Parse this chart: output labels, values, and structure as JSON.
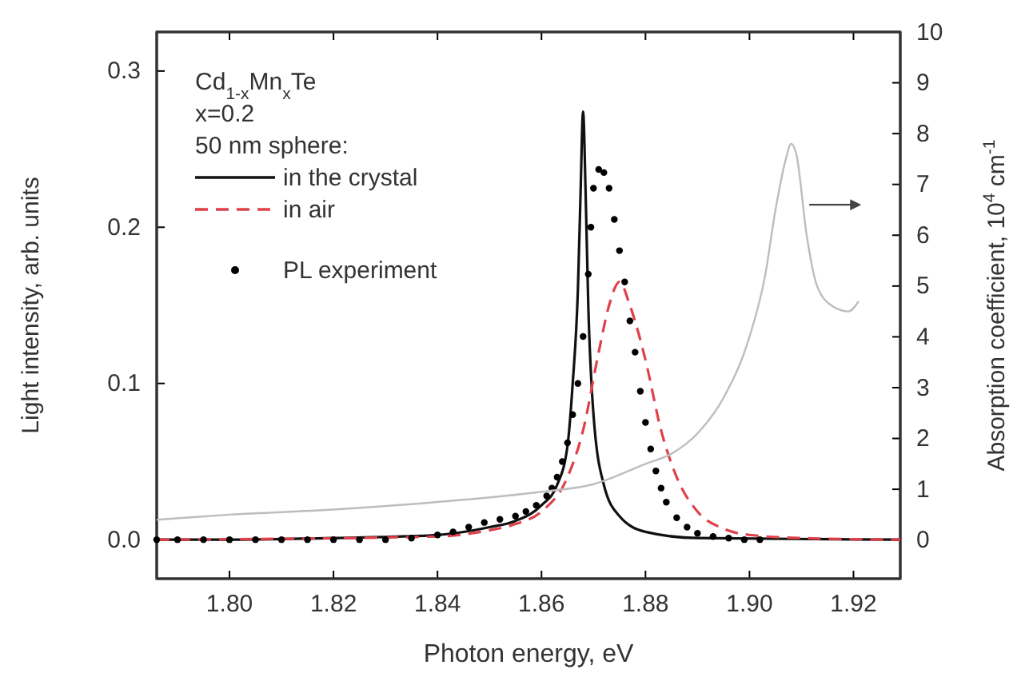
{
  "chart_data": {
    "type": "line",
    "xlabel": "Photon energy, eV",
    "ylabel": "Light intensity, arb. units",
    "y2label": "Absorption coefficient, 10$^{4}$ cm$^{-1}$",
    "annotations": [
      "Cd$_{1-x}$Mn$_{x}$Te",
      "x=0.2",
      "50 nm sphere:"
    ],
    "xlim": [
      1.786,
      1.929
    ],
    "xticks": [
      {
        "value": 1.8,
        "label": "1.80"
      },
      {
        "value": 1.82,
        "label": "1.82"
      },
      {
        "value": 1.84,
        "label": "1.84"
      },
      {
        "value": 1.86,
        "label": "1.86"
      },
      {
        "value": 1.88,
        "label": "1.88"
      },
      {
        "value": 1.9,
        "label": "1.90"
      },
      {
        "value": 1.92,
        "label": "1.92"
      }
    ],
    "ylim": [
      -0.025,
      0.325
    ],
    "yticks": [
      {
        "value": 0,
        "label": "0.0"
      },
      0.1,
      0.2,
      0.3
    ],
    "y2lim": [
      -0.76,
      10
    ],
    "y2ticks": [
      0,
      1,
      2,
      3,
      4,
      5,
      6,
      7,
      8,
      9,
      10
    ],
    "grid": false,
    "legend": "top left",
    "series": [
      {
        "name": "in the crystal",
        "color": "#111111",
        "line_style": "solid",
        "x": [
          1.786,
          1.8,
          1.82,
          1.84,
          1.85,
          1.855,
          1.86,
          1.863,
          1.865,
          1.866,
          1.867,
          1.8675,
          1.868,
          1.8685,
          1.869,
          1.87,
          1.872,
          1.875,
          1.88,
          1.89,
          1.929
        ],
        "values": [
          0,
          0,
          0.001,
          0.003,
          0.008,
          0.012,
          0.022,
          0.035,
          0.06,
          0.1,
          0.16,
          0.22,
          0.274,
          0.22,
          0.15,
          0.08,
          0.035,
          0.015,
          0.005,
          0.001,
          0
        ]
      },
      {
        "name": "in air",
        "color": "#e0404a",
        "line_style": "dashed",
        "x": [
          1.786,
          1.84,
          1.85,
          1.855,
          1.86,
          1.865,
          1.868,
          1.871,
          1.873,
          1.875,
          1.877,
          1.88,
          1.883,
          1.886,
          1.89,
          1.895,
          1.9,
          1.91,
          1.929
        ],
        "values": [
          0,
          0.002,
          0.006,
          0.01,
          0.018,
          0.04,
          0.07,
          0.12,
          0.15,
          0.165,
          0.15,
          0.115,
          0.07,
          0.04,
          0.018,
          0.007,
          0.003,
          0.001,
          0
        ]
      },
      {
        "name": "PL experiment",
        "type": "scatter",
        "marker": "circle",
        "color": "#000000",
        "x": [
          1.786,
          1.79,
          1.795,
          1.8,
          1.805,
          1.81,
          1.815,
          1.82,
          1.825,
          1.83,
          1.835,
          1.84,
          1.843,
          1.846,
          1.849,
          1.852,
          1.855,
          1.857,
          1.859,
          1.861,
          1.862,
          1.863,
          1.864,
          1.865,
          1.866,
          1.867,
          1.868,
          1.869,
          1.8695,
          1.87,
          1.871,
          1.872,
          1.873,
          1.874,
          1.875,
          1.876,
          1.877,
          1.878,
          1.879,
          1.88,
          1.881,
          1.882,
          1.883,
          1.884,
          1.886,
          1.888,
          1.89,
          1.893,
          1.896,
          1.899,
          1.902
        ],
        "values": [
          0,
          0,
          0,
          0,
          0,
          0,
          0,
          0,
          0,
          0,
          0.001,
          0.003,
          0.005,
          0.008,
          0.011,
          0.013,
          0.015,
          0.018,
          0.022,
          0.028,
          0.033,
          0.04,
          0.05,
          0.062,
          0.08,
          0.1,
          0.13,
          0.17,
          0.2,
          0.225,
          0.237,
          0.235,
          0.225,
          0.205,
          0.185,
          0.165,
          0.14,
          0.12,
          0.095,
          0.075,
          0.058,
          0.044,
          0.033,
          0.024,
          0.014,
          0.008,
          0.004,
          0.002,
          0.001,
          0,
          0
        ]
      },
      {
        "axis": "y2",
        "color": "#bdbdbd",
        "line_style": "solid",
        "x": [
          1.786,
          1.8,
          1.82,
          1.84,
          1.86,
          1.87,
          1.88,
          1.885,
          1.89,
          1.895,
          1.9,
          1.903,
          1.905,
          1.907,
          1.908,
          1.909,
          1.911,
          1.913,
          1.916,
          1.919,
          1.921
        ],
        "values": [
          0.4,
          0.5,
          0.6,
          0.75,
          0.95,
          1.1,
          1.5,
          1.7,
          2.1,
          2.8,
          4.0,
          5.2,
          6.5,
          7.5,
          7.8,
          7.6,
          6.0,
          5.0,
          4.6,
          4.5,
          4.7
        ]
      }
    ]
  }
}
